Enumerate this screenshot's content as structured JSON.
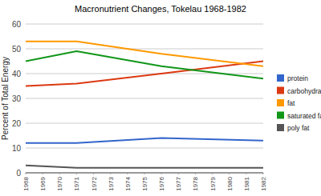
{
  "chart_data": {
    "type": "line",
    "title": "Macronutrient Changes, Tokelau 1968-1982",
    "y_label": "Percent of Total Energy",
    "x": [
      1968,
      1971,
      1976,
      1982
    ],
    "xlim": [
      1968,
      1982
    ],
    "xticks": [
      1968,
      1969,
      1970,
      1971,
      1972,
      1973,
      1974,
      1975,
      1976,
      1977,
      1978,
      1979,
      1980,
      1981,
      1982
    ],
    "ylim": [
      0,
      60
    ],
    "yticks": [
      0,
      10,
      20,
      30,
      40,
      50,
      60
    ],
    "grid": true,
    "legend": "right",
    "series": [
      {
        "name": "protein",
        "color": "#3366cc",
        "values": [
          12,
          12,
          14,
          13
        ]
      },
      {
        "name": "carbohydrate",
        "color": "#dc3912",
        "values": [
          35,
          36,
          40,
          45
        ]
      },
      {
        "name": "fat",
        "color": "#ff9900",
        "values": [
          53,
          53,
          48,
          43
        ]
      },
      {
        "name": "saturated fat",
        "color": "#109618",
        "values": [
          45,
          49,
          43,
          38
        ]
      },
      {
        "name": "poly fat",
        "color": "#555555",
        "values": [
          3,
          2,
          2,
          2
        ]
      }
    ]
  }
}
